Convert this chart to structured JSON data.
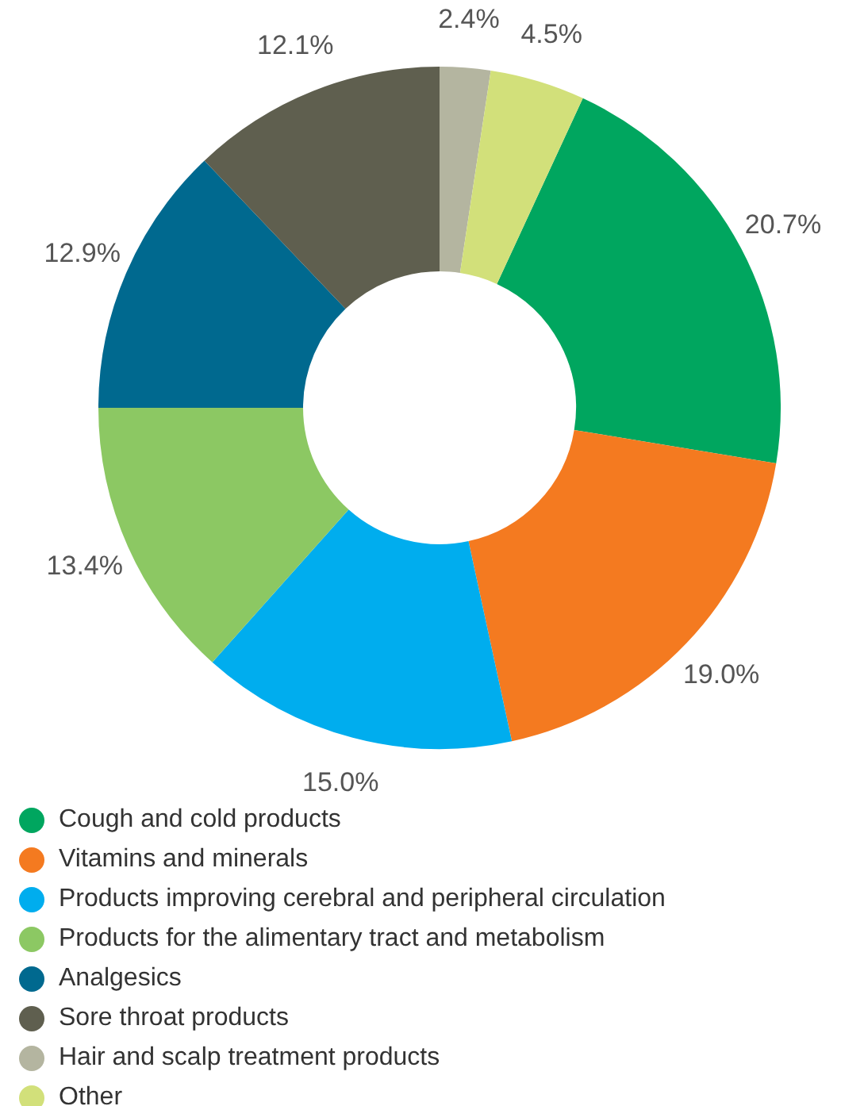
{
  "chart_data": {
    "type": "donut",
    "categories": [
      "Cough and cold products",
      "Vitamins and minerals",
      "Products improving cerebral and peripheral circulation",
      "Products for the alimentary tract and metabolism",
      "Analgesics",
      "Sore throat products",
      "Hair and scalp treatment products",
      "Other"
    ],
    "values": [
      20.7,
      19.0,
      15.0,
      13.4,
      12.9,
      12.1,
      2.4,
      4.5
    ],
    "colors": [
      "#00a65f",
      "#f47a20",
      "#00adee",
      "#8cc863",
      "#00698f",
      "#5f5f4f",
      "#b4b5a0",
      "#d2e07a"
    ],
    "value_labels": [
      "20.7%",
      "19.0%",
      "15.0%",
      "13.4%",
      "12.9%",
      "12.1%",
      "2.4%",
      "4.5%"
    ],
    "legend": "bottom"
  }
}
